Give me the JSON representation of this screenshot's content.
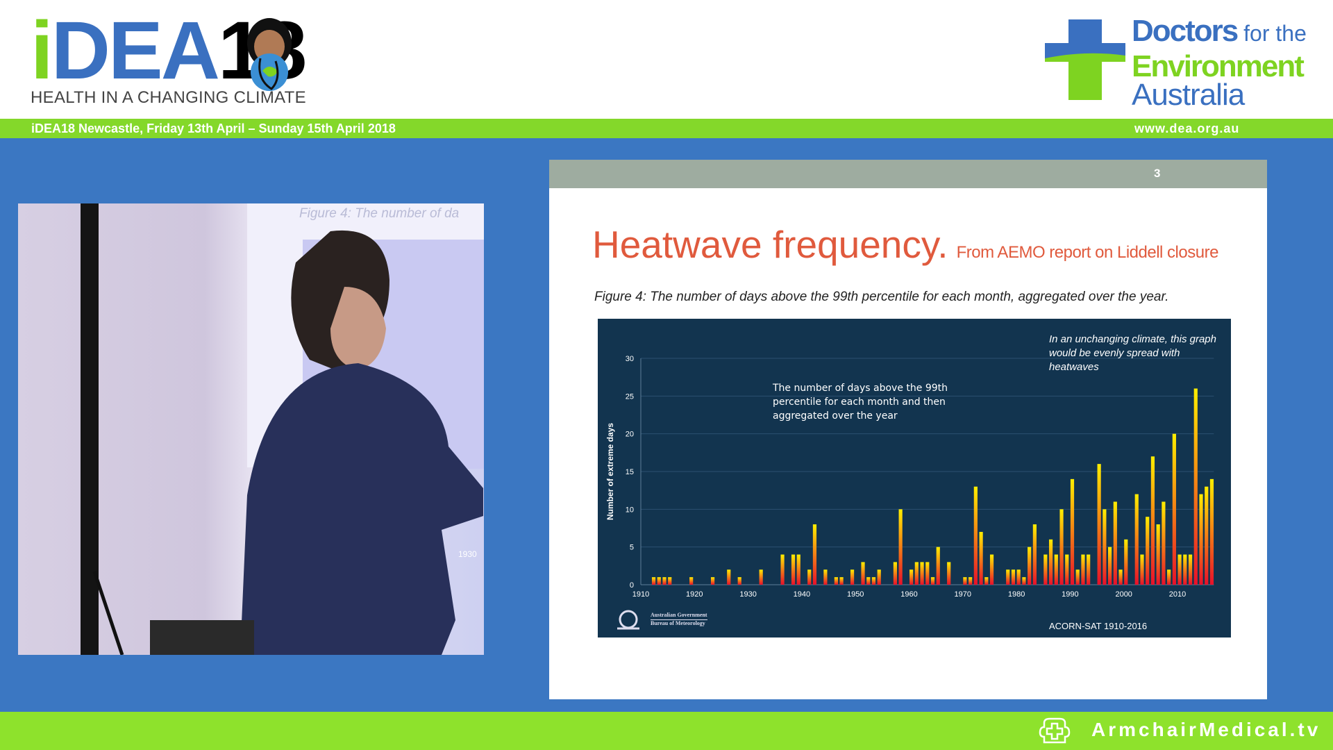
{
  "header": {
    "event_logo": {
      "i": "i",
      "dea": "DEA",
      "num": "18",
      "tagline": "HEALTH IN A CHANGING CLIMATE"
    },
    "org_logo": {
      "line1a": "Doctors",
      "line1b": " for the",
      "line2": "Environment",
      "line3": "Australia"
    }
  },
  "topbar": {
    "event": "iDEA18 Newcastle, Friday 13th April – Sunday 15th April 2018",
    "url": "www.dea.org.au"
  },
  "video": {
    "slide_caption_fragment": "Figure 4: The number of da",
    "axis_fragment": "1930"
  },
  "slide": {
    "page_number": "3",
    "title": "Heatwave frequency.",
    "subtitle": "From AEMO report on Liddell closure",
    "caption": "Figure 4: The number of days above the 99th percentile for each month, aggregated over the year."
  },
  "chart_data": {
    "type": "bar",
    "ylabel": "Number of extreme days",
    "xlabel": "",
    "ylim": [
      0,
      30
    ],
    "yticks": [
      0,
      5,
      10,
      15,
      20,
      25,
      30
    ],
    "xlim": [
      1910,
      2016
    ],
    "xticks": [
      1910,
      1920,
      1930,
      1940,
      1950,
      1960,
      1970,
      1980,
      1990,
      2000,
      2010
    ],
    "grid": true,
    "annotations": [
      "The number of days above the 99th percentile for each month and then aggregated over the year",
      "In an unchanging climate, this graph would be evenly spread with heatwaves"
    ],
    "source": "ACORN-SAT 1910-2016",
    "logo_text": [
      "Australian Government",
      "Bureau of Meteorology"
    ],
    "colors": {
      "background": "#12344f",
      "bar_top": "#ffee00",
      "bar_bottom": "#e8102a"
    },
    "x": [
      1912,
      1913,
      1914,
      1915,
      1919,
      1923,
      1926,
      1928,
      1932,
      1936,
      1938,
      1939,
      1941,
      1942,
      1944,
      1946,
      1947,
      1949,
      1951,
      1952,
      1953,
      1954,
      1957,
      1958,
      1960,
      1961,
      1962,
      1963,
      1964,
      1965,
      1967,
      1970,
      1971,
      1972,
      1973,
      1974,
      1975,
      1978,
      1979,
      1980,
      1981,
      1982,
      1983,
      1985,
      1986,
      1987,
      1988,
      1989,
      1990,
      1991,
      1992,
      1993,
      1995,
      1996,
      1997,
      1998,
      1999,
      2000,
      2002,
      2003,
      2004,
      2005,
      2006,
      2007,
      2008,
      2009,
      2010,
      2011,
      2012,
      2013,
      2014,
      2015,
      2016
    ],
    "values": [
      1,
      1,
      1,
      1,
      1,
      1,
      2,
      1,
      2,
      4,
      4,
      4,
      2,
      8,
      2,
      1,
      1,
      2,
      3,
      1,
      1,
      2,
      3,
      10,
      2,
      3,
      3,
      3,
      1,
      5,
      3,
      1,
      1,
      13,
      7,
      1,
      4,
      2,
      2,
      2,
      1,
      5,
      8,
      4,
      6,
      4,
      10,
      4,
      14,
      2,
      4,
      4,
      16,
      10,
      5,
      11,
      2,
      6,
      12,
      4,
      9,
      17,
      8,
      11,
      2,
      20,
      4,
      4,
      4,
      26,
      12,
      13,
      14
    ]
  },
  "footer": {
    "brand": "ArmchairMedical.tv"
  }
}
